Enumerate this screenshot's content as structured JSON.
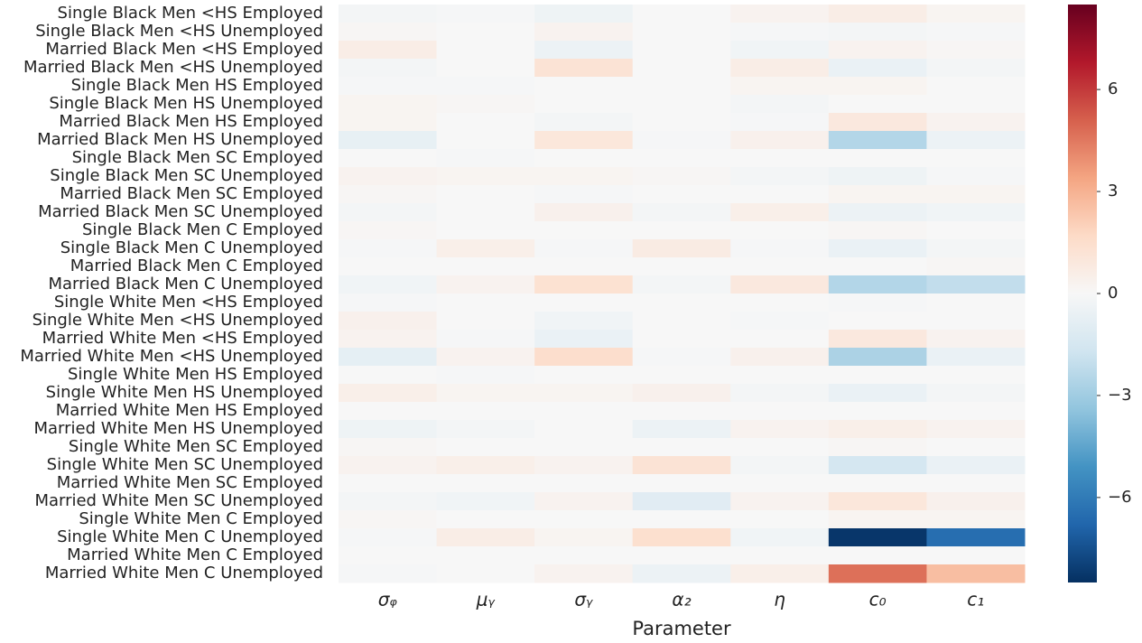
{
  "chart_data": {
    "type": "heatmap",
    "xlabel": "Parameter",
    "columns": [
      "σᵩ",
      "μᵧ",
      "σᵧ",
      "α₂",
      "η",
      "c₀",
      "c₁"
    ],
    "rows": [
      "Single Black Men <HS Employed",
      "Single Black Men <HS Unemployed",
      "Married Black Men <HS Employed",
      "Married Black Men <HS Unemployed",
      "Single Black Men HS Employed",
      "Single Black Men HS Unemployed",
      "Married Black Men HS Employed",
      "Married Black Men HS Unemployed",
      "Single Black Men SC Employed",
      "Single Black Men SC Unemployed",
      "Married Black Men SC Employed",
      "Married Black Men SC Unemployed",
      "Single Black Men C Employed",
      "Single Black Men C Unemployed",
      "Married Black Men C Employed",
      "Married Black Men C Unemployed",
      "Single White Men <HS Employed",
      "Single White Men <HS Unemployed",
      "Married White Men <HS Employed",
      "Married White Men <HS Unemployed",
      "Single White Men HS Employed",
      "Single White Men HS Unemployed",
      "Married White Men HS Employed",
      "Married White Men HS Unemployed",
      "Single White Men SC Employed",
      "Single White Men SC Unemployed",
      "Married White Men SC Employed",
      "Married White Men SC Unemployed",
      "Single White Men C Employed",
      "Single White Men C Unemployed",
      "Married White Men C Employed",
      "Married White Men C Unemployed"
    ],
    "values": [
      [
        -0.2,
        -0.1,
        -0.4,
        0,
        0.3,
        0.6,
        0.2
      ],
      [
        0.1,
        0,
        0.3,
        0,
        -0.1,
        -0.2,
        -0.1
      ],
      [
        0.6,
        0,
        -0.5,
        0,
        -0.3,
        0.3,
        0.1
      ],
      [
        -0.2,
        0,
        1.2,
        0,
        0.6,
        -0.6,
        -0.2
      ],
      [
        -0.1,
        -0.1,
        0,
        0,
        0.2,
        0.2,
        0
      ],
      [
        0.2,
        0.1,
        0,
        0,
        -0.2,
        0,
        0
      ],
      [
        0.2,
        0,
        -0.2,
        0,
        -0.1,
        0.9,
        0.3
      ],
      [
        -0.7,
        0,
        1.0,
        -0.1,
        0.4,
        -2.5,
        -0.5
      ],
      [
        0,
        -0.1,
        0,
        0,
        0,
        0,
        0
      ],
      [
        0.3,
        0.2,
        0.2,
        0.1,
        -0.2,
        -0.4,
        -0.1
      ],
      [
        0.1,
        0,
        -0.1,
        0,
        0,
        0.2,
        0.2
      ],
      [
        -0.2,
        0,
        0.4,
        -0.2,
        0.5,
        -0.5,
        -0.3
      ],
      [
        0.1,
        0,
        0,
        0,
        0,
        0.1,
        0
      ],
      [
        -0.1,
        0.5,
        -0.1,
        0.7,
        -0.1,
        -0.6,
        -0.2
      ],
      [
        0,
        0,
        0,
        0,
        0,
        0,
        0.1
      ],
      [
        -0.3,
        0.3,
        1.3,
        -0.2,
        0.9,
        -2.5,
        -2.1
      ],
      [
        -0.1,
        0,
        0,
        0,
        0,
        -0.1,
        0
      ],
      [
        0.4,
        0,
        -0.3,
        0,
        -0.1,
        0,
        0
      ],
      [
        0.3,
        -0.1,
        -0.6,
        0,
        0,
        0.9,
        0.3
      ],
      [
        -0.8,
        0.3,
        1.5,
        -0.1,
        0.4,
        -2.7,
        -0.6
      ],
      [
        0,
        -0.1,
        0,
        0,
        0,
        0,
        0
      ],
      [
        0.5,
        0.2,
        0.2,
        0.4,
        -0.2,
        -0.6,
        -0.2
      ],
      [
        0,
        0,
        0,
        0,
        0,
        0,
        0
      ],
      [
        -0.4,
        -0.2,
        0,
        -0.5,
        0.3,
        0.5,
        0.3
      ],
      [
        0.1,
        0,
        0,
        0,
        0,
        0.1,
        0
      ],
      [
        0.3,
        0.5,
        0.3,
        1.2,
        -0.2,
        -1.5,
        -0.6
      ],
      [
        0,
        0,
        0,
        0,
        0,
        0,
        0
      ],
      [
        -0.2,
        -0.3,
        0.3,
        -1.0,
        0.3,
        1.0,
        0.4
      ],
      [
        0.1,
        0,
        0,
        0,
        0,
        0.2,
        0.2
      ],
      [
        -0.1,
        0.6,
        0.2,
        1.4,
        -0.3,
        -8.3,
        -6.5
      ],
      [
        0,
        0,
        0,
        0,
        0,
        0,
        0
      ],
      [
        -0.1,
        0,
        0.3,
        -0.5,
        0.5,
        4.7,
        2.6
      ]
    ],
    "zlim": [
      -8.5,
      8.5
    ],
    "zticks": [
      {
        "value": -6,
        "label": "−6"
      },
      {
        "value": -3,
        "label": "−3"
      },
      0,
      3,
      6
    ],
    "colormap": [
      "#053061",
      "#2166ac",
      "#4393c3",
      "#92c5de",
      "#d1e5f0",
      "#f7f7f7",
      "#fddbc7",
      "#f4a582",
      "#d6604d",
      "#b2182b",
      "#67001f"
    ]
  }
}
